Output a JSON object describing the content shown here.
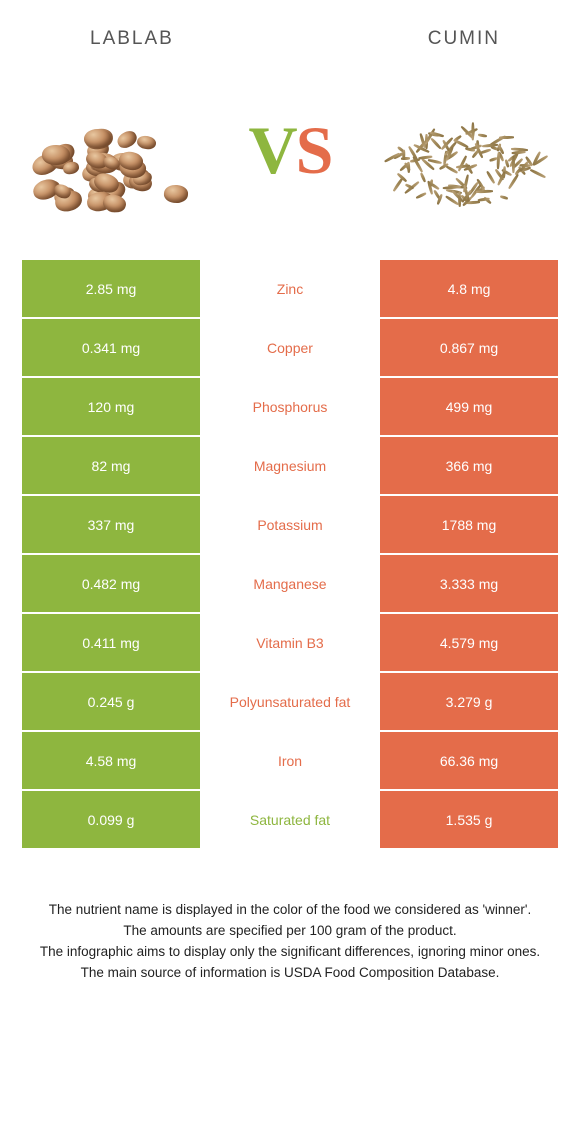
{
  "header": {
    "left_title": "LABLAB",
    "right_title": "CUMIN"
  },
  "vs": {
    "v": "V",
    "s": "S"
  },
  "colors": {
    "left": "#8eb63f",
    "right": "#e46c4a",
    "bg": "#ffffff",
    "text": "#222222"
  },
  "table": {
    "rows": [
      {
        "left": "2.85 mg",
        "label": "Zinc",
        "right": "4.8 mg",
        "winner": "right"
      },
      {
        "left": "0.341 mg",
        "label": "Copper",
        "right": "0.867 mg",
        "winner": "right"
      },
      {
        "left": "120 mg",
        "label": "Phosphorus",
        "right": "499 mg",
        "winner": "right"
      },
      {
        "left": "82 mg",
        "label": "Magnesium",
        "right": "366 mg",
        "winner": "right"
      },
      {
        "left": "337 mg",
        "label": "Potassium",
        "right": "1788 mg",
        "winner": "right"
      },
      {
        "left": "0.482 mg",
        "label": "Manganese",
        "right": "3.333 mg",
        "winner": "right"
      },
      {
        "left": "0.411 mg",
        "label": "Vitamin B3",
        "right": "4.579 mg",
        "winner": "right"
      },
      {
        "left": "0.245 g",
        "label": "Polyunsaturated fat",
        "right": "3.279 g",
        "winner": "right"
      },
      {
        "left": "4.58 mg",
        "label": "Iron",
        "right": "66.36 mg",
        "winner": "right"
      },
      {
        "left": "0.099 g",
        "label": "Saturated fat",
        "right": "1.535 g",
        "winner": "left"
      }
    ]
  },
  "footer": {
    "line1": "The nutrient name is displayed in the color of the food we considered as 'winner'.",
    "line2": "The amounts are specified per 100 gram of the product.",
    "line3": "The infographic aims to display only the significant differences, ignoring minor ones.",
    "line4": "The main source of information is USDA Food Composition Database."
  },
  "left_image": {
    "kind": "bean-pile",
    "count": 36,
    "bean_size_min": 16,
    "bean_size_max": 28
  },
  "right_image": {
    "kind": "seed-pile",
    "count": 110,
    "seed_w_min": 8,
    "seed_w_max": 18,
    "seed_h": 3
  }
}
